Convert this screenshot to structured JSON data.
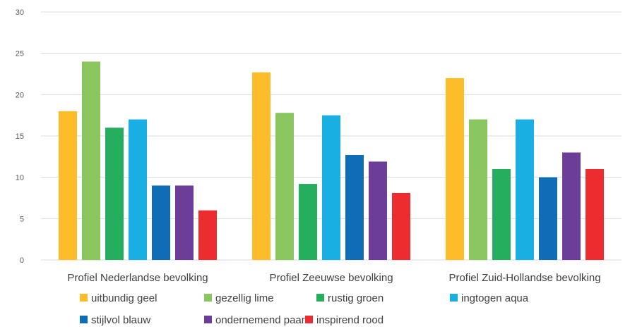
{
  "chart_data": {
    "type": "bar",
    "categories": [
      "Profiel Nederlandse bevolking",
      "Profiel Zeeuwse bevolking",
      "Profiel Zuid-Hollandse bevolking"
    ],
    "series": [
      {
        "name": "uitbundig geel",
        "color": "#FDBD2A",
        "values": [
          18,
          22.7,
          22
        ]
      },
      {
        "name": "gezellig lime",
        "color": "#8AC55F",
        "values": [
          24,
          17.8,
          17
        ]
      },
      {
        "name": "rustig groen",
        "color": "#26AE5F",
        "values": [
          16,
          9.2,
          11
        ]
      },
      {
        "name": "ingtogen aqua",
        "color": "#19AFE2",
        "values": [
          17,
          17.5,
          17
        ]
      },
      {
        "name": "stijlvol blauw",
        "color": "#0E6DB6",
        "values": [
          9,
          12.7,
          10
        ]
      },
      {
        "name": "ondernemend paars",
        "color": "#6C3E98",
        "values": [
          9,
          11.9,
          13
        ]
      },
      {
        "name": "inspirend rood",
        "color": "#EC2C2F",
        "values": [
          6,
          8.1,
          11
        ]
      }
    ],
    "ylim": [
      0,
      30
    ],
    "yticks": [
      0,
      5,
      10,
      15,
      20,
      25,
      30
    ],
    "grid": true,
    "legend_position": "bottom"
  }
}
